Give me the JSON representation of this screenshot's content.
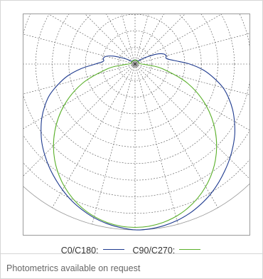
{
  "chart_data": {
    "type": "polar",
    "title": "",
    "series": [
      {
        "name": "C0/C180:",
        "color": "#1f3b8f",
        "angles_deg": [
          0,
          5,
          10,
          15,
          20,
          25,
          30,
          35,
          40,
          45,
          50,
          55,
          60,
          65,
          70,
          75,
          80,
          85,
          90,
          95,
          100,
          105,
          110,
          115,
          120,
          125,
          130,
          135,
          140,
          145,
          150,
          155,
          160,
          165,
          170,
          175,
          180,
          185,
          190,
          195,
          200,
          205,
          210,
          215,
          220,
          225,
          230,
          235,
          240,
          245,
          250,
          255,
          260,
          265,
          270,
          275,
          280,
          285,
          290,
          295,
          300,
          305,
          310,
          315,
          320,
          325,
          330,
          335,
          340,
          345,
          350,
          355
        ],
        "values": [
          1.0,
          0.998,
          0.99,
          0.977,
          0.959,
          0.935,
          0.908,
          0.876,
          0.842,
          0.808,
          0.772,
          0.735,
          0.693,
          0.65,
          0.602,
          0.55,
          0.483,
          0.414,
          0.33,
          0.24,
          0.192,
          0.195,
          0.18,
          0.14,
          0.09,
          0.06,
          0.035,
          0.025,
          0.025,
          0.025,
          0.025,
          0.025,
          0.025,
          0.025,
          0.025,
          0.025,
          0.025,
          0.025,
          0.025,
          0.025,
          0.025,
          0.025,
          0.025,
          0.025,
          0.025,
          0.025,
          0.025,
          0.035,
          0.06,
          0.09,
          0.14,
          0.18,
          0.195,
          0.192,
          0.24,
          0.33,
          0.414,
          0.483,
          0.55,
          0.602,
          0.65,
          0.693,
          0.735,
          0.772,
          0.808,
          0.842,
          0.876,
          0.908,
          0.935,
          0.959,
          0.977,
          0.99,
          0.998
        ]
      },
      {
        "name": "C90/C270:",
        "color": "#5ab02a",
        "angles_deg": [
          0,
          10,
          20,
          30,
          40,
          50,
          60,
          70,
          80,
          85,
          90,
          95,
          100,
          110,
          120,
          180,
          240,
          250,
          260,
          265,
          270,
          275,
          280,
          290,
          300,
          310,
          320,
          330,
          340,
          350
        ],
        "values": [
          0.985,
          0.97,
          0.926,
          0.853,
          0.755,
          0.633,
          0.493,
          0.337,
          0.171,
          0.086,
          0.04,
          0.03,
          0.025,
          0.025,
          0.025,
          0.025,
          0.025,
          0.025,
          0.025,
          0.03,
          0.04,
          0.086,
          0.171,
          0.337,
          0.493,
          0.633,
          0.755,
          0.853,
          0.926,
          0.97
        ]
      }
    ],
    "grid": true,
    "angular_grid_step_deg": 15,
    "radial_grid_rings": 10,
    "legend_position": "bottom"
  },
  "legend": {
    "c0_label": "C0/C180:",
    "c90_label": "C90/C270:"
  },
  "footnote": "Photometrics available on request",
  "colors": {
    "grid": "#555555",
    "frame": "#9a9a9a",
    "outer_circle": "#9a9a9a"
  }
}
